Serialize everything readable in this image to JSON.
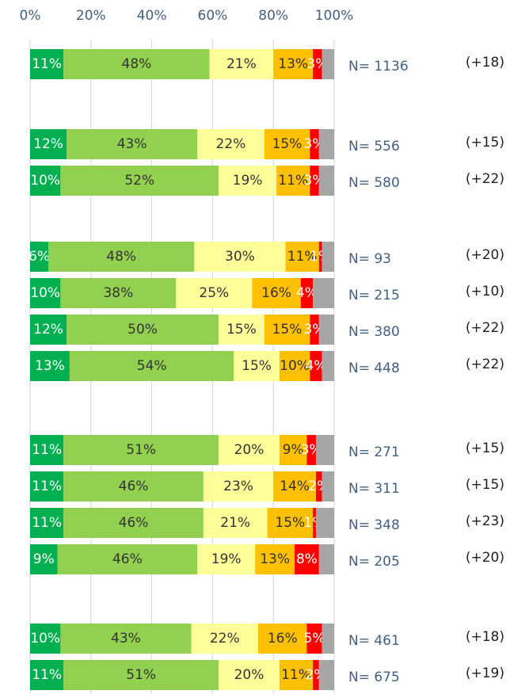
{
  "chart_data": {
    "type": "stacked-bar-horizontal",
    "xlim": [
      0,
      100
    ],
    "xticks": [
      {
        "value": 0,
        "label": "0%"
      },
      {
        "value": 20,
        "label": "20%"
      },
      {
        "value": 40,
        "label": "40%"
      },
      {
        "value": 60,
        "label": "60%"
      },
      {
        "value": 80,
        "label": "80%"
      },
      {
        "value": 100,
        "label": "100%"
      }
    ],
    "grid": true,
    "series": [
      {
        "color": "#00b050",
        "values": [
          11,
          12,
          10,
          6,
          10,
          12,
          13,
          11,
          11,
          11,
          9,
          10,
          11
        ],
        "value_labels": [
          "11%",
          "12%",
          "10%",
          "6%",
          "10%",
          "12%",
          "13%",
          "11%",
          "11%",
          "11%",
          "9%",
          "10%",
          "11%"
        ]
      },
      {
        "color": "#92d050",
        "values": [
          48,
          43,
          52,
          48,
          38,
          50,
          54,
          51,
          46,
          46,
          46,
          43,
          51
        ],
        "value_labels": [
          "48%",
          "43%",
          "52%",
          "48%",
          "38%",
          "50%",
          "54%",
          "51%",
          "46%",
          "46%",
          "46%",
          "43%",
          "51%"
        ]
      },
      {
        "color": "#ffff99",
        "values": [
          21,
          22,
          19,
          30,
          25,
          15,
          15,
          20,
          23,
          21,
          19,
          22,
          20
        ],
        "value_labels": [
          "21%",
          "22%",
          "19%",
          "30%",
          "25%",
          "15%",
          "15%",
          "20%",
          "23%",
          "21%",
          "19%",
          "22%",
          "20%"
        ]
      },
      {
        "color": "#ffc000",
        "values": [
          13,
          15,
          11,
          11,
          16,
          15,
          10,
          9,
          14,
          15,
          13,
          16,
          11
        ],
        "value_labels": [
          "13%",
          "15%",
          "11%",
          "11%",
          "16%",
          "15%",
          "10%",
          "9%",
          "14%",
          "15%",
          "13%",
          "16%",
          "11%"
        ]
      },
      {
        "color": "#ff0000",
        "values": [
          3,
          3,
          3,
          1,
          4,
          3,
          4,
          3,
          2,
          1,
          8,
          5,
          2
        ],
        "value_labels": [
          "3%",
          "3%",
          "3%",
          "1%",
          "4%",
          "3%",
          "4%",
          "3%",
          "2%",
          "1%",
          "8%",
          "5%",
          "2%"
        ]
      },
      {
        "color": "#a6a6a6",
        "values": [
          4,
          5,
          5,
          4,
          7,
          5,
          4,
          6,
          4,
          6,
          5,
          4,
          5
        ]
      }
    ],
    "n_labels": [
      "N= 1136",
      "N= 556",
      "N= 580",
      "N= 93",
      "N= 215",
      "N= 380",
      "N= 448",
      "N= 271",
      "N= 311",
      "N= 348",
      "N= 205",
      "N= 461",
      "N= 675"
    ],
    "changes": [
      "(+18)",
      "(+15)",
      "(+22)",
      "(+20)",
      "(+10)",
      "(+22)",
      "(+22)",
      "(+15)",
      "(+15)",
      "(+23)",
      "(+20)",
      "(+18)",
      "(+19)"
    ]
  }
}
